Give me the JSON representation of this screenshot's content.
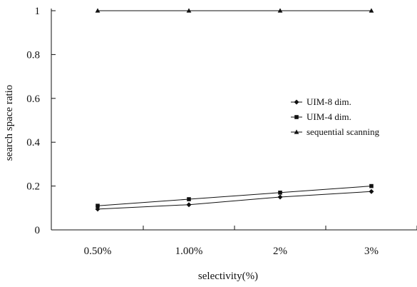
{
  "chart_data": {
    "type": "line",
    "title": "",
    "xlabel": "selectivity(%)",
    "ylabel": "search space ratio",
    "categories": [
      "0.50%",
      "1.00%",
      "2%",
      "3%"
    ],
    "ylim": [
      0,
      1
    ],
    "yticks": [
      "0",
      "0.2",
      "0.4",
      "0.6",
      "0.8",
      "1"
    ],
    "ytick_values": [
      0,
      0.2,
      0.4,
      0.6,
      0.8,
      1
    ],
    "grid": false,
    "legend_position": "right",
    "series": [
      {
        "name": "UIM-8 dim.",
        "values": [
          0.095,
          0.115,
          0.15,
          0.175
        ],
        "marker": "diamond",
        "color": "#111111"
      },
      {
        "name": "UIM-4 dim.",
        "values": [
          0.11,
          0.14,
          0.17,
          0.2
        ],
        "marker": "square",
        "color": "#111111"
      },
      {
        "name": "sequential scanning",
        "values": [
          1,
          1,
          1,
          1
        ],
        "marker": "triangle",
        "color": "#111111"
      }
    ]
  }
}
